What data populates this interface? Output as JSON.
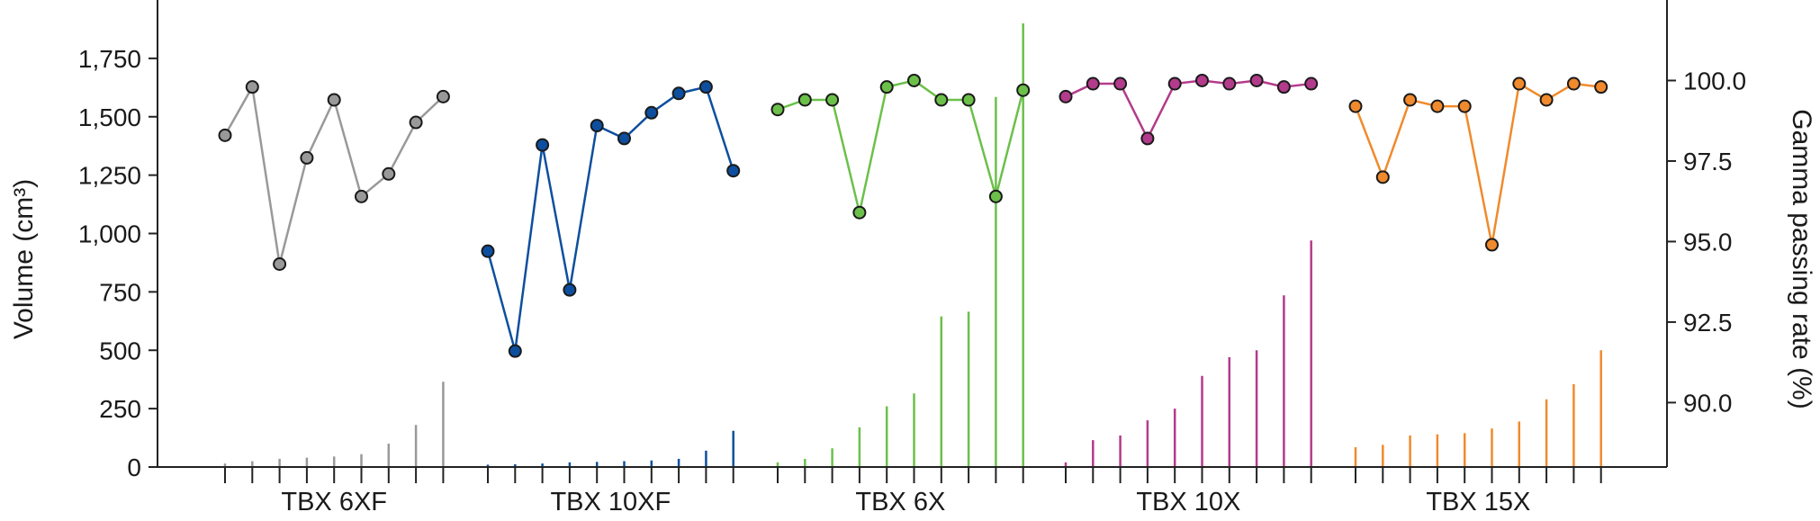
{
  "chart_data": {
    "type": "line",
    "secondary_type": "bar",
    "title": "",
    "ylabel_left": "Volume (cm³)",
    "ylabel_right": "Gamma passing rate (%)",
    "left_axis": {
      "ylim": [
        0,
        2000
      ],
      "ticks": [
        0,
        250,
        500,
        750,
        1000,
        1250,
        1500,
        1750
      ],
      "tick_labels": [
        "0",
        "250",
        "500",
        "750",
        "1,000",
        "1,250",
        "1,500",
        "1,750"
      ]
    },
    "right_axis": {
      "ylim": [
        88.0,
        102.5
      ],
      "ticks": [
        90.0,
        92.5,
        95.0,
        97.5,
        100.0
      ],
      "tick_labels": [
        "90.0",
        "92.5",
        "95.0",
        "97.5",
        "100.0"
      ]
    },
    "grid": false,
    "legend": "none",
    "groups": [
      {
        "label": "TBX 6XF",
        "color": "#999999",
        "volume_bars": [
          15,
          25,
          35,
          40,
          45,
          55,
          100,
          180,
          365
        ],
        "gamma_line": [
          98.3,
          99.8,
          94.3,
          97.6,
          99.4,
          96.4,
          97.1,
          98.7,
          99.5
        ]
      },
      {
        "label": "TBX 10XF",
        "color": "#0d4f9e",
        "volume_bars": [
          10,
          12,
          15,
          20,
          22,
          25,
          28,
          35,
          70,
          155
        ],
        "gamma_line": [
          94.7,
          91.6,
          98.0,
          93.5,
          98.6,
          98.2,
          99.0,
          99.6,
          99.8,
          97.2
        ]
      },
      {
        "label": "TBX 6X",
        "color": "#6cc04a",
        "volume_bars": [
          20,
          35,
          80,
          170,
          260,
          315,
          645,
          665,
          1585,
          1900
        ],
        "gamma_line": [
          99.1,
          99.4,
          99.4,
          95.9,
          99.8,
          100.0,
          99.4,
          99.4,
          96.4,
          99.7
        ]
      },
      {
        "label": "TBX 10X",
        "color": "#b33b8b",
        "volume_bars": [
          20,
          115,
          135,
          200,
          250,
          390,
          470,
          500,
          735,
          970
        ],
        "gamma_line": [
          99.5,
          99.9,
          99.9,
          98.2,
          99.9,
          100.0,
          99.9,
          100.0,
          99.8,
          99.9
        ]
      },
      {
        "label": "TBX 15X",
        "color": "#f08a2c",
        "volume_bars": [
          85,
          95,
          135,
          140,
          145,
          165,
          195,
          290,
          355,
          500
        ],
        "gamma_line": [
          99.2,
          97.0,
          99.4,
          99.2,
          99.2,
          94.9,
          99.9,
          99.4,
          99.9,
          99.8
        ]
      }
    ]
  }
}
